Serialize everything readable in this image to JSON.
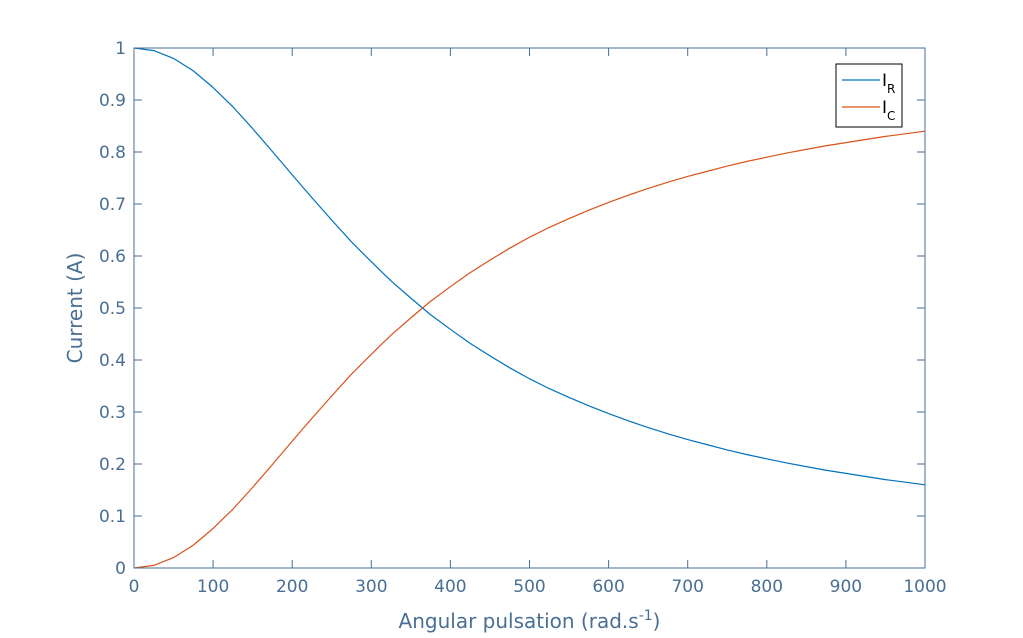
{
  "chart_data": {
    "type": "line",
    "title": "",
    "xlabel": "Angular pulsation (rad.s",
    "xlabel_superscript": "-1",
    "xlabel_suffix": ")",
    "ylabel": "Current (A)",
    "xlim": [
      0,
      1000
    ],
    "ylim": [
      0,
      1
    ],
    "xticks": [
      0,
      100,
      200,
      300,
      400,
      500,
      600,
      700,
      800,
      900,
      1000
    ],
    "xtick_labels": [
      "0",
      "100",
      "200",
      "300",
      "400",
      "500",
      "600",
      "700",
      "800",
      "900",
      "1000"
    ],
    "yticks": [
      0,
      0.1,
      0.2,
      0.3,
      0.4,
      0.5,
      0.6,
      0.7,
      0.8,
      0.9,
      1
    ],
    "ytick_labels": [
      "0",
      "0.1",
      "0.2",
      "0.3",
      "0.4",
      "0.5",
      "0.6",
      "0.7",
      "0.8",
      "0.9",
      "1"
    ],
    "grid": false,
    "legend_position": "top-right",
    "x": [
      0,
      25,
      50,
      75,
      100,
      125,
      150,
      175,
      200,
      225,
      250,
      275,
      300,
      325,
      350,
      375,
      400,
      425,
      450,
      475,
      500,
      525,
      550,
      575,
      600,
      625,
      650,
      675,
      700,
      725,
      750,
      775,
      800,
      825,
      850,
      875,
      900,
      925,
      950,
      975,
      1000
    ],
    "series": [
      {
        "name": "I",
        "name_subscript": "R",
        "color": "#0072bd",
        "values": [
          1.0,
          0.995,
          0.98,
          0.956,
          0.924,
          0.887,
          0.845,
          0.801,
          0.756,
          0.712,
          0.669,
          0.627,
          0.589,
          0.552,
          0.519,
          0.487,
          0.459,
          0.432,
          0.408,
          0.385,
          0.364,
          0.345,
          0.328,
          0.312,
          0.297,
          0.283,
          0.27,
          0.258,
          0.247,
          0.237,
          0.227,
          0.218,
          0.21,
          0.202,
          0.195,
          0.188,
          0.182,
          0.176,
          0.17,
          0.165,
          0.16
        ]
      },
      {
        "name": "I",
        "name_subscript": "C",
        "color": "#d95319",
        "values": [
          0.0,
          0.005,
          0.02,
          0.044,
          0.076,
          0.113,
          0.155,
          0.199,
          0.244,
          0.288,
          0.331,
          0.373,
          0.411,
          0.448,
          0.481,
          0.513,
          0.541,
          0.568,
          0.592,
          0.615,
          0.636,
          0.655,
          0.672,
          0.688,
          0.703,
          0.717,
          0.73,
          0.742,
          0.753,
          0.763,
          0.773,
          0.782,
          0.79,
          0.798,
          0.805,
          0.812,
          0.818,
          0.824,
          0.83,
          0.835,
          0.84
        ]
      }
    ]
  },
  "colors": {
    "axis": "#4a6f94",
    "legend_border": "#000000"
  }
}
